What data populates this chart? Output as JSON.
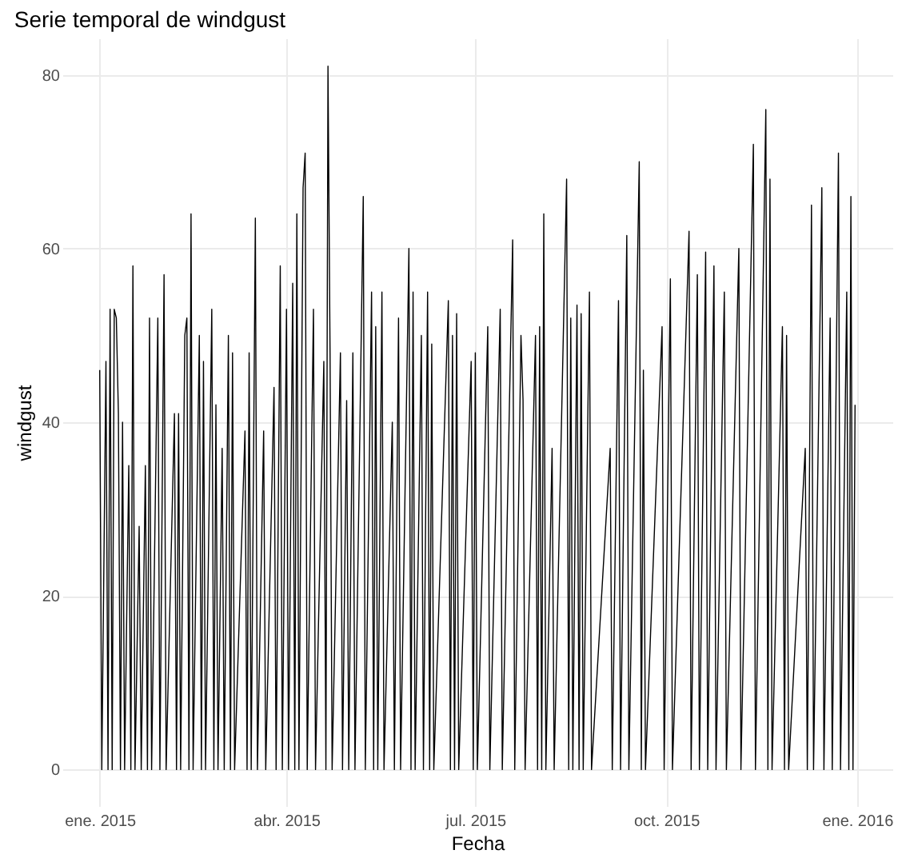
{
  "chart_data": {
    "type": "line",
    "title": "Serie temporal de windgust",
    "xlabel": "Fecha",
    "ylabel": "windgust",
    "xlim": [
      "2014-12-14",
      "2016-01-18"
    ],
    "ylim": [
      -4.2,
      84.2
    ],
    "xticks": [
      {
        "value": "2015-01-01",
        "label": "ene. 2015"
      },
      {
        "value": "2015-04-01",
        "label": "abr. 2015"
      },
      {
        "value": "2015-07-01",
        "label": "jul. 2015"
      },
      {
        "value": "2015-10-01",
        "label": "oct. 2015"
      },
      {
        "value": "2016-01-01",
        "label": "ene. 2016"
      }
    ],
    "yticks": [
      0,
      20,
      40,
      60,
      80
    ],
    "grid": true,
    "legend": false,
    "marker": "none",
    "line_style": "solid",
    "x": [
      "2015-01-01",
      "2015-01-02",
      "2015-01-04",
      "2015-01-05",
      "2015-01-06",
      "2015-01-07",
      "2015-01-08",
      "2015-01-09",
      "2015-01-10",
      "2015-01-11",
      "2015-01-12",
      "2015-01-13",
      "2015-01-15",
      "2015-01-16",
      "2015-01-17",
      "2015-01-18",
      "2015-01-20",
      "2015-01-21",
      "2015-01-23",
      "2015-01-24",
      "2015-01-25",
      "2015-01-26",
      "2015-01-29",
      "2015-01-30",
      "2015-02-01",
      "2015-02-02",
      "2015-02-06",
      "2015-02-07",
      "2015-02-08",
      "2015-02-09",
      "2015-02-11",
      "2015-02-12",
      "2015-02-13",
      "2015-02-14",
      "2015-02-15",
      "2015-02-18",
      "2015-02-19",
      "2015-02-20",
      "2015-02-21",
      "2015-02-24",
      "2015-02-25",
      "2015-02-26",
      "2015-02-27",
      "2015-03-01",
      "2015-03-02",
      "2015-03-04",
      "2015-03-05",
      "2015-03-06",
      "2015-03-07",
      "2015-03-12",
      "2015-03-13",
      "2015-03-14",
      "2015-03-15",
      "2015-03-17",
      "2015-03-18",
      "2015-03-21",
      "2015-03-22",
      "2015-03-26",
      "2015-03-27",
      "2015-03-29",
      "2015-03-30",
      "2015-04-01",
      "2015-04-02",
      "2015-04-04",
      "2015-04-05",
      "2015-04-06",
      "2015-04-07",
      "2015-04-09",
      "2015-04-10",
      "2015-04-11",
      "2015-04-14",
      "2015-04-15",
      "2015-04-19",
      "2015-04-20",
      "2015-04-21",
      "2015-04-22",
      "2015-04-23",
      "2015-04-27",
      "2015-04-28",
      "2015-04-30",
      "2015-05-01",
      "2015-05-03",
      "2015-05-04",
      "2015-05-08",
      "2015-05-09",
      "2015-05-12",
      "2015-05-13",
      "2015-05-14",
      "2015-05-15",
      "2015-05-17",
      "2015-05-18",
      "2015-05-22",
      "2015-05-23",
      "2015-05-25",
      "2015-05-26",
      "2015-05-30",
      "2015-05-31",
      "2015-06-01",
      "2015-06-02",
      "2015-06-05",
      "2015-06-06",
      "2015-06-08",
      "2015-06-09",
      "2015-06-10",
      "2015-06-11",
      "2015-06-18",
      "2015-06-19",
      "2015-06-20",
      "2015-06-21",
      "2015-06-22",
      "2015-06-23",
      "2015-06-29",
      "2015-06-30",
      "2015-07-01",
      "2015-07-02",
      "2015-07-07",
      "2015-07-08",
      "2015-07-13",
      "2015-07-14",
      "2015-07-19",
      "2015-07-20",
      "2015-07-23",
      "2015-07-24",
      "2015-07-25",
      "2015-07-30",
      "2015-07-31",
      "2015-08-01",
      "2015-08-02",
      "2015-08-03",
      "2015-08-04",
      "2015-08-07",
      "2015-08-08",
      "2015-08-14",
      "2015-08-15",
      "2015-08-16",
      "2015-08-17",
      "2015-08-19",
      "2015-08-20",
      "2015-08-21",
      "2015-08-22",
      "2015-08-25",
      "2015-08-26",
      "2015-09-04",
      "2015-09-05",
      "2015-09-08",
      "2015-09-09",
      "2015-09-12",
      "2015-09-13",
      "2015-09-18",
      "2015-09-19",
      "2015-09-20",
      "2015-09-21",
      "2015-09-29",
      "2015-09-30",
      "2015-10-03",
      "2015-10-04",
      "2015-10-12",
      "2015-10-13",
      "2015-10-16",
      "2015-10-17",
      "2015-10-20",
      "2015-10-21",
      "2015-10-24",
      "2015-10-25",
      "2015-10-29",
      "2015-10-30",
      "2015-11-05",
      "2015-11-06",
      "2015-11-12",
      "2015-11-13",
      "2015-11-18",
      "2015-11-19",
      "2015-11-20",
      "2015-11-21",
      "2015-11-26",
      "2015-11-27",
      "2015-11-28",
      "2015-11-29",
      "2015-12-07",
      "2015-12-08",
      "2015-12-10",
      "2015-12-11",
      "2015-12-15",
      "2015-12-16",
      "2015-12-19",
      "2015-12-20",
      "2015-12-23",
      "2015-12-24",
      "2015-12-27",
      "2015-12-28",
      "2015-12-29",
      "2015-12-30",
      "2015-12-31"
    ],
    "series": [
      {
        "color": "#000000",
        "values": [
          46,
          0,
          47,
          0,
          53,
          0,
          53,
          52,
          41,
          0,
          40,
          0,
          35,
          0,
          58,
          0,
          28,
          0,
          35,
          0,
          52,
          0,
          52,
          0,
          57,
          0,
          41,
          0,
          41,
          0,
          50,
          52,
          0,
          64,
          0,
          50,
          0,
          47,
          0,
          53,
          0,
          42,
          0,
          37,
          0,
          50,
          0,
          48,
          0,
          39,
          0,
          48,
          0,
          63.5,
          0,
          39,
          0,
          44,
          0,
          58,
          0,
          53,
          0,
          56,
          0,
          64,
          0,
          67,
          71,
          0,
          53,
          0,
          47,
          0,
          81,
          48,
          0,
          48,
          0,
          42.5,
          0,
          48,
          0,
          66,
          0,
          55,
          0,
          51,
          0,
          55,
          0,
          40,
          0,
          52,
          0,
          60,
          0,
          55,
          0,
          50,
          0,
          55,
          0,
          49,
          0,
          54,
          0,
          50,
          0,
          52.5,
          0,
          47,
          0,
          48,
          0,
          51,
          0,
          53,
          0,
          61,
          0,
          50,
          42.5,
          0,
          50,
          0,
          51,
          0,
          64,
          0,
          37,
          0,
          68,
          0,
          52,
          0,
          53.5,
          0,
          52.5,
          0,
          55,
          0,
          37,
          0,
          54,
          0,
          61.5,
          0,
          70,
          0,
          46,
          0,
          51,
          0,
          56.5,
          0,
          62,
          0,
          57,
          0,
          59.6,
          0,
          58,
          0,
          55,
          0,
          60,
          0,
          72,
          0,
          76,
          0,
          68,
          0,
          51,
          0,
          50,
          0,
          37,
          0,
          65,
          0,
          67,
          0,
          52,
          0,
          71,
          0,
          55,
          0,
          66,
          0,
          42
        ]
      }
    ]
  }
}
